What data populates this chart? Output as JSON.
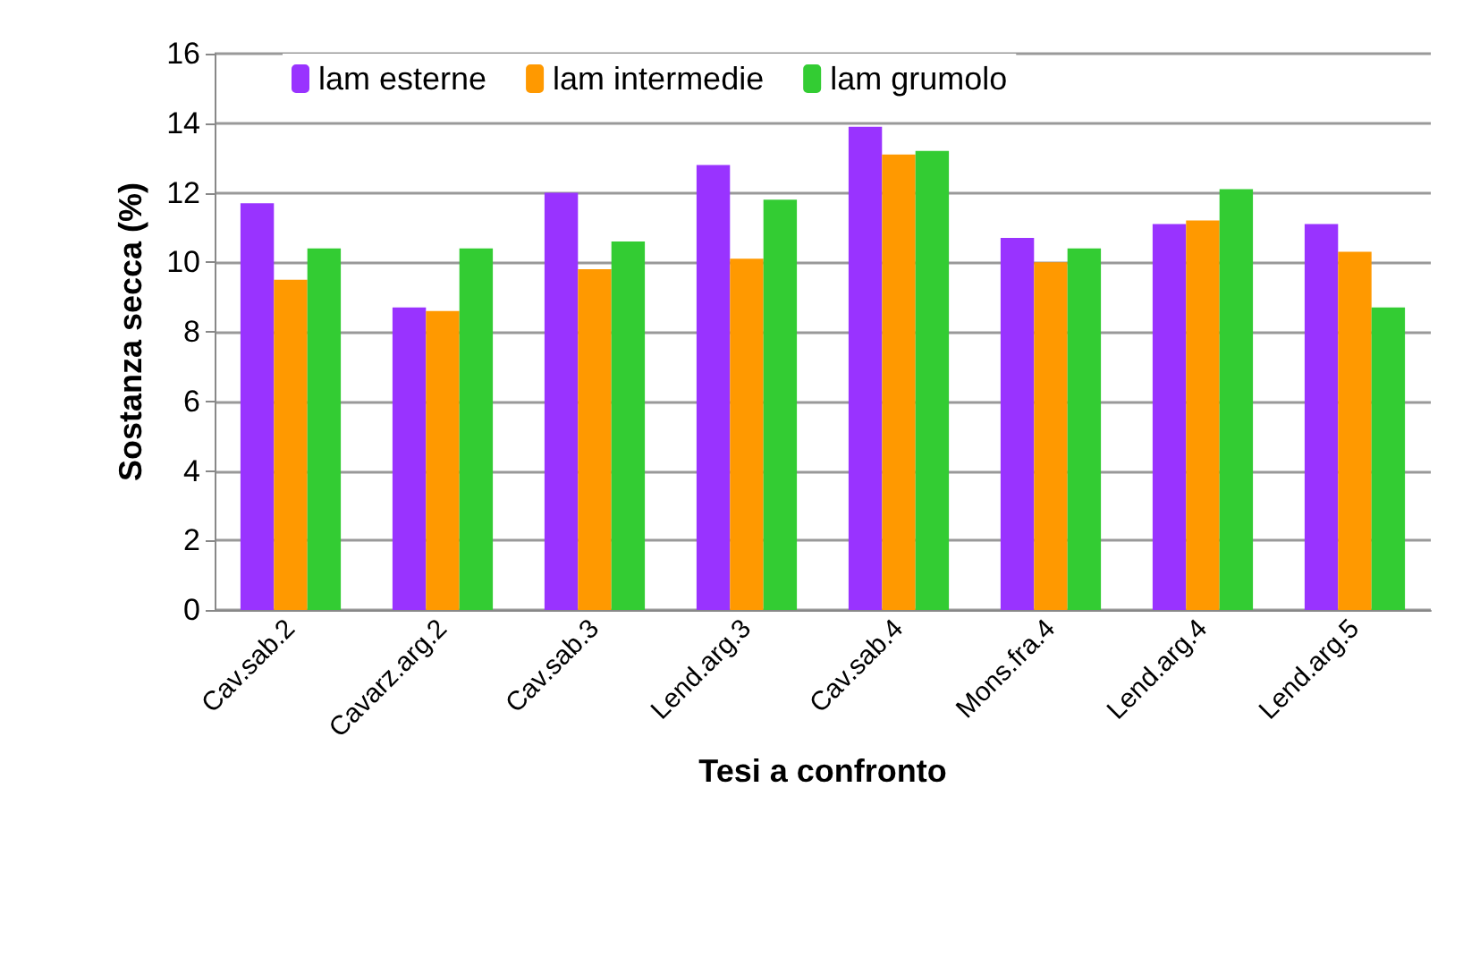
{
  "chart_data": {
    "type": "bar",
    "xlabel": "Tesi a confronto",
    "ylabel": "Sostanza secca (%)",
    "categories": [
      "Cav.sab.2",
      "Cavarz.arg.2",
      "Cav.sab.3",
      "Lend.arg.3",
      "Cav.sab.4",
      "Mons.fra.4",
      "Lend.arg.4",
      "Lend.arg.5"
    ],
    "series": [
      {
        "name": "lam esterne",
        "color": "#9933ff",
        "values": [
          11.7,
          8.7,
          12.0,
          12.8,
          13.9,
          10.7,
          11.1,
          11.1
        ]
      },
      {
        "name": "lam intermedie",
        "color": "#ff9900",
        "values": [
          9.5,
          8.6,
          9.8,
          10.1,
          13.1,
          10.0,
          11.2,
          10.3
        ]
      },
      {
        "name": "lam grumolo",
        "color": "#33cc33",
        "values": [
          10.4,
          10.4,
          10.6,
          11.8,
          13.2,
          10.4,
          12.1,
          8.7
        ]
      }
    ],
    "ylim": [
      0,
      16
    ],
    "yticks": [
      0,
      2,
      4,
      6,
      8,
      10,
      12,
      14,
      16
    ],
    "grid": "y",
    "legend": "top"
  }
}
